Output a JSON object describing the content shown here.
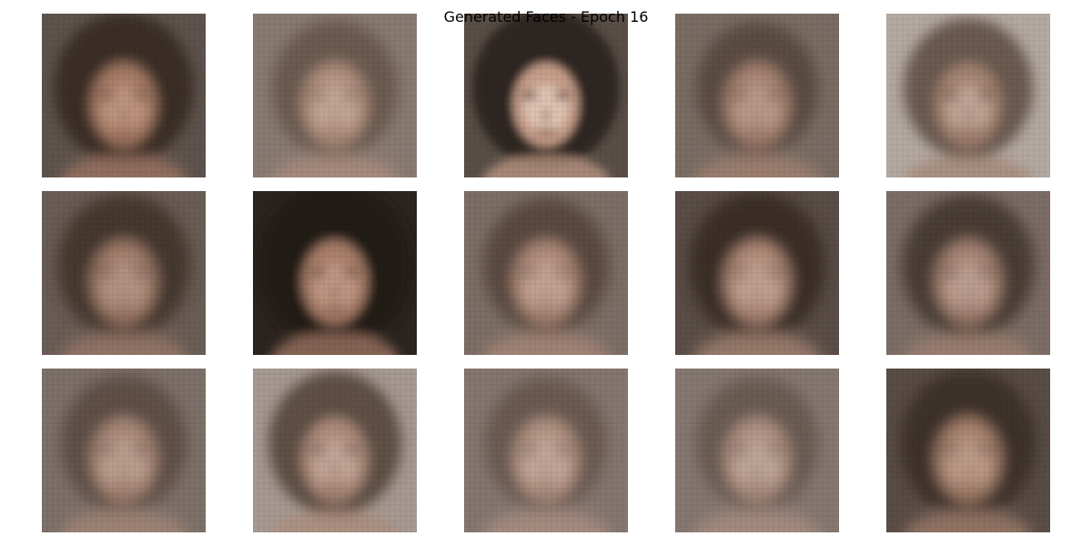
{
  "figure": {
    "title": "Generated Faces - Epoch 16"
  },
  "grid": {
    "rows": 3,
    "cols": 5,
    "tiles": [
      {
        "bg": "#5e544d",
        "hair": "#3a2e27",
        "skin": "#a67b66",
        "light": "#c9a08a",
        "hairCoverage": 0.55,
        "blur": 7
      },
      {
        "bg": "#8a7b72",
        "hair": "#6b5a50",
        "skin": "#b49280",
        "light": "#cdb1a1",
        "hairCoverage": 0.35,
        "blur": 8
      },
      {
        "bg": "#5a4f48",
        "hair": "#2f2520",
        "skin": "#c79f8b",
        "light": "#ead0c2",
        "hairCoverage": 0.65,
        "blur": 5
      },
      {
        "bg": "#7a6d64",
        "hair": "#5a4b42",
        "skin": "#a98573",
        "light": "#c6a797",
        "hairCoverage": 0.3,
        "blur": 8
      },
      {
        "bg": "#b4aaa3",
        "hair": "#6a5a50",
        "skin": "#a58472",
        "light": "#cdb4a6",
        "hairCoverage": 0.4,
        "blur": 7
      },
      {
        "bg": "#6a5d55",
        "hair": "#45372f",
        "skin": "#a27e6c",
        "light": "#bea08f",
        "hairCoverage": 0.45,
        "blur": 8
      },
      {
        "bg": "#2c2420",
        "hair": "#231b17",
        "skin": "#a97f6b",
        "light": "#c9a18d",
        "hairCoverage": 0.75,
        "blur": 6
      },
      {
        "bg": "#7d6f66",
        "hair": "#5a4a41",
        "skin": "#b08c7a",
        "light": "#d0b2a2",
        "hairCoverage": 0.35,
        "blur": 8
      },
      {
        "bg": "#5a4e47",
        "hair": "#3b2f28",
        "skin": "#b08b79",
        "light": "#ceae9e",
        "hairCoverage": 0.5,
        "blur": 8
      },
      {
        "bg": "#7c6e66",
        "hair": "#4a3c34",
        "skin": "#a78574",
        "light": "#c9ae9f",
        "hairCoverage": 0.45,
        "blur": 8
      },
      {
        "bg": "#7e716a",
        "hair": "#5e4f46",
        "skin": "#ab8a79",
        "light": "#c7ab9c",
        "hairCoverage": 0.35,
        "blur": 8
      },
      {
        "bg": "#a69a92",
        "hair": "#5f4f45",
        "skin": "#ae8c7b",
        "light": "#cdb2a3",
        "hairCoverage": 0.45,
        "blur": 7
      },
      {
        "bg": "#857770",
        "hair": "#6a5a51",
        "skin": "#b49484",
        "light": "#cdb4a6",
        "hairCoverage": 0.3,
        "blur": 8
      },
      {
        "bg": "#857871",
        "hair": "#6b5c53",
        "skin": "#b19383",
        "light": "#c9b1a4",
        "hairCoverage": 0.3,
        "blur": 8
      },
      {
        "bg": "#5a4d46",
        "hair": "#3e3129",
        "skin": "#a8836f",
        "light": "#c9a895",
        "hairCoverage": 0.5,
        "blur": 8
      }
    ]
  }
}
